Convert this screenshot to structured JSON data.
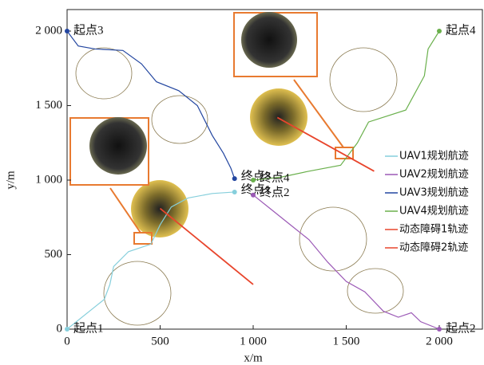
{
  "chart_data": {
    "type": "line",
    "xlabel": "x/m",
    "ylabel": "y/m",
    "xlim": [
      0,
      2200
    ],
    "ylim": [
      0,
      2150
    ],
    "xticks": [
      0,
      500,
      {
        "value": 1000,
        "label": "1 000"
      },
      {
        "value": 1500,
        "label": "1 500"
      },
      {
        "value": 2000,
        "label": "2 000"
      }
    ],
    "yticks": [
      0,
      500,
      {
        "value": 1000,
        "label": "1 000"
      },
      {
        "value": 1500,
        "label": "1 500"
      },
      {
        "value": 2000,
        "label": "2 000"
      }
    ],
    "series": [
      {
        "name": "UAV1规划航迹",
        "color": "#86cfdc",
        "start_label": "起点1",
        "end_label": "终点1",
        "x": [
          0,
          150,
          200,
          230,
          250,
          330,
          450,
          500,
          560,
          650,
          780,
          900
        ],
        "values": [
          0,
          150,
          200,
          300,
          420,
          520,
          570,
          700,
          820,
          880,
          910,
          920
        ]
      },
      {
        "name": "UAV2规划航迹",
        "color": "#9b59b6",
        "start_label": "起点2",
        "end_label": "终点2",
        "x": [
          2000,
          1900,
          1850,
          1780,
          1700,
          1600,
          1500,
          1400,
          1300,
          1200,
          1100,
          1000
        ],
        "values": [
          0,
          50,
          110,
          80,
          120,
          250,
          320,
          450,
          600,
          700,
          800,
          900
        ]
      },
      {
        "name": "UAV3规划航迹",
        "color": "#2346a0",
        "start_label": "起点3",
        "end_label": "终点3",
        "x": [
          0,
          60,
          150,
          300,
          400,
          480,
          600,
          700,
          780,
          840,
          880,
          900
        ],
        "values": [
          2000,
          1900,
          1880,
          1870,
          1780,
          1660,
          1600,
          1500,
          1300,
          1180,
          1080,
          1010
        ]
      },
      {
        "name": "UAV4规划航迹",
        "color": "#6ab04c",
        "start_label": "起点4",
        "end_label": "终点4",
        "x": [
          2000,
          1940,
          1920,
          1820,
          1620,
          1560,
          1470,
          1300,
          1150,
          1000
        ],
        "values": [
          2000,
          1880,
          1700,
          1470,
          1390,
          1250,
          1100,
          1060,
          1020,
          1000
        ]
      },
      {
        "name": "动态障碍1轨迹",
        "color": "#e8452c",
        "x": [
          500,
          1000
        ],
        "values": [
          810,
          300
        ]
      },
      {
        "name": "动态障碍2轨迹",
        "color": "#e8452c",
        "x": [
          1130,
          1650
        ],
        "values": [
          1420,
          1060
        ]
      }
    ]
  }
}
